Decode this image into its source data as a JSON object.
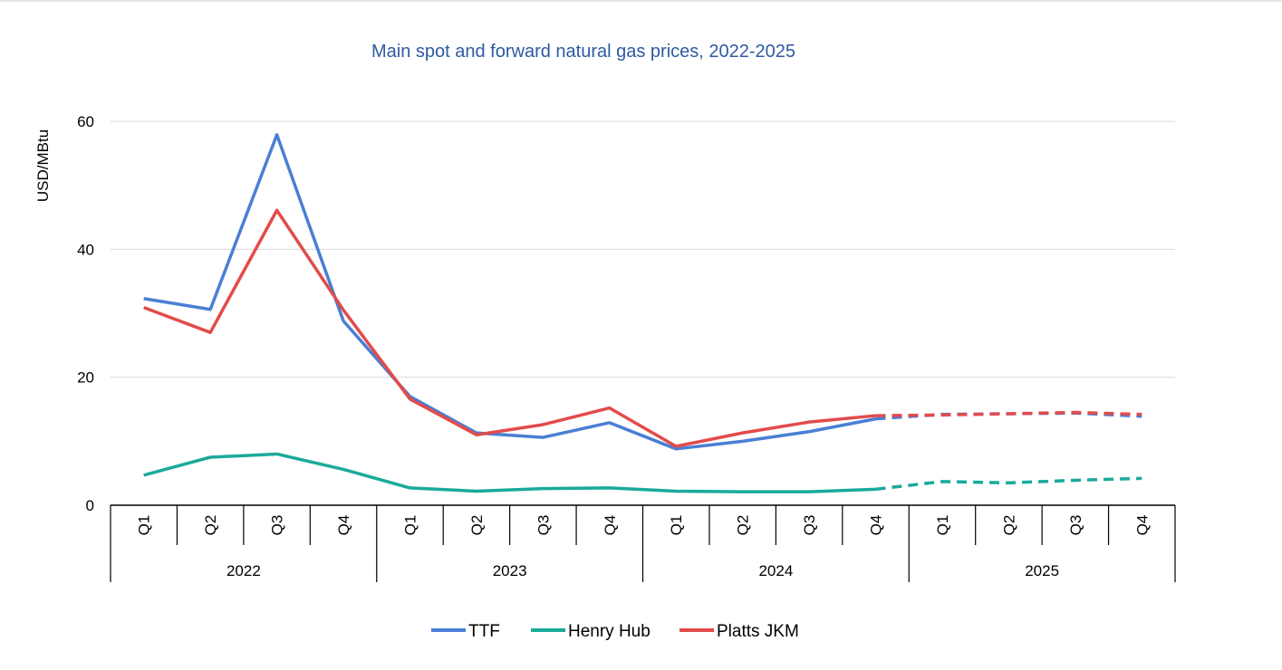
{
  "chart_data": {
    "type": "line",
    "title": "Main spot and forward natural gas prices, 2022-2025",
    "ylabel": "USD/MBtu",
    "xlabel": "",
    "ylim": [
      0,
      60
    ],
    "yticks": [
      0,
      20,
      40,
      60
    ],
    "grid": true,
    "legend_position": "bottom",
    "years": [
      "2022",
      "2023",
      "2024",
      "2025"
    ],
    "categories": [
      "Q1",
      "Q2",
      "Q3",
      "Q4",
      "Q1",
      "Q2",
      "Q3",
      "Q4",
      "Q1",
      "Q2",
      "Q3",
      "Q4",
      "Q1",
      "Q2",
      "Q3",
      "Q4"
    ],
    "forecast_start_index": 11,
    "series": [
      {
        "name": "TTF",
        "color": "#4a7fd4",
        "values": [
          32.3,
          30.6,
          57.9,
          28.8,
          17.0,
          11.3,
          10.6,
          12.9,
          8.8,
          10.0,
          11.5,
          13.5,
          14.2,
          14.3,
          14.4,
          13.9
        ]
      },
      {
        "name": "Henry Hub",
        "color": "#1aaa9a",
        "values": [
          4.7,
          7.5,
          8.0,
          5.6,
          2.7,
          2.2,
          2.6,
          2.7,
          2.2,
          2.1,
          2.1,
          2.5,
          3.7,
          3.5,
          3.9,
          4.2
        ]
      },
      {
        "name": "Platts JKM",
        "color": "#e24b4b",
        "values": [
          30.9,
          27.0,
          46.1,
          30.5,
          16.6,
          11.0,
          12.6,
          15.2,
          9.2,
          11.3,
          13.0,
          14.0,
          14.1,
          14.3,
          14.5,
          14.2
        ]
      }
    ]
  }
}
